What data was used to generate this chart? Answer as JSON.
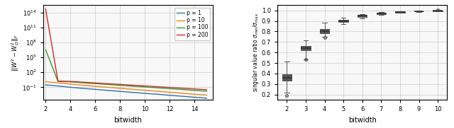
{
  "left": {
    "xlabel": "bitwidth",
    "xvals": [
      2,
      3,
      4,
      5,
      6,
      7,
      8,
      9,
      10,
      11,
      12,
      13,
      14,
      15
    ],
    "lines": {
      "p = 1": [
        0.3,
        0.18,
        0.1,
        0.06,
        0.038,
        0.024,
        0.015,
        0.0095,
        0.006,
        0.004,
        0.0025,
        0.0016,
        0.001,
        0.00065
      ],
      "p = 10": [
        1.3,
        0.75,
        0.43,
        0.26,
        0.16,
        0.098,
        0.062,
        0.039,
        0.025,
        0.016,
        0.01,
        0.0065,
        0.004,
        0.0026
      ],
      "p = 100": [
        3500000.0,
        1.5,
        1.2,
        0.8,
        0.54,
        0.37,
        0.25,
        0.17,
        0.115,
        0.078,
        0.053,
        0.036,
        0.024,
        0.016
      ],
      "p = 200": [
        500000000000000.0,
        1.8,
        1.5,
        1.05,
        0.74,
        0.52,
        0.37,
        0.26,
        0.185,
        0.13,
        0.092,
        0.065,
        0.046,
        0.032
      ]
    },
    "colors": {
      "p = 1": "#1f77b4",
      "p = 10": "#ff7f0e",
      "p = 100": "#2ca02c",
      "p = 200": "#d62728"
    },
    "xticks": [
      2,
      4,
      6,
      8,
      10,
      12,
      14
    ],
    "xlim": [
      1.8,
      15.5
    ],
    "ylim": [
      0.0003,
      3000000000000000.0
    ]
  },
  "right": {
    "xlabel": "bitwidth",
    "xticks": [
      2,
      3,
      4,
      5,
      6,
      7,
      8,
      9,
      10
    ],
    "ylim": [
      0.15,
      1.05
    ],
    "yticks": [
      0.2,
      0.3,
      0.4,
      0.5,
      0.6,
      0.7,
      0.8,
      0.9,
      1.0
    ],
    "box_data": {
      "2": {
        "q1": 0.335,
        "median": 0.362,
        "q3": 0.395,
        "whisker_low": 0.218,
        "whisker_high": 0.515,
        "outliers_low": [
          0.193
        ],
        "outliers_high": []
      },
      "3": {
        "q1": 0.622,
        "median": 0.645,
        "q3": 0.662,
        "whisker_low": 0.535,
        "whisker_high": 0.718,
        "outliers_low": [
          0.535
        ],
        "outliers_high": []
      },
      "4": {
        "q1": 0.783,
        "median": 0.805,
        "q3": 0.823,
        "whisker_low": 0.748,
        "whisker_high": 0.885,
        "outliers_low": [
          0.745
        ],
        "outliers_high": []
      },
      "5": {
        "q1": 0.888,
        "median": 0.9,
        "q3": 0.91,
        "whisker_low": 0.868,
        "whisker_high": 0.928,
        "outliers_low": [],
        "outliers_high": []
      },
      "6": {
        "q1": 0.94,
        "median": 0.95,
        "q3": 0.958,
        "whisker_low": 0.925,
        "whisker_high": 0.965,
        "outliers_low": [],
        "outliers_high": []
      },
      "7": {
        "q1": 0.965,
        "median": 0.97,
        "q3": 0.975,
        "whisker_low": 0.958,
        "whisker_high": 0.982,
        "outliers_low": [],
        "outliers_high": []
      },
      "8": {
        "q1": 0.981,
        "median": 0.985,
        "q3": 0.988,
        "whisker_low": 0.976,
        "whisker_high": 0.992,
        "outliers_low": [],
        "outliers_high": []
      },
      "9": {
        "q1": 0.989,
        "median": 0.991,
        "q3": 0.993,
        "whisker_low": 0.986,
        "whisker_high": 0.996,
        "outliers_low": [],
        "outliers_high": []
      },
      "10": {
        "q1": 0.993,
        "median": 0.995,
        "q3": 0.997,
        "whisker_low": 0.99,
        "whisker_high": 1.0,
        "outliers_low": [],
        "outliers_high": [
          1.002
        ]
      }
    },
    "box_color": "#ff7f0e",
    "box_width": 0.5
  },
  "bg_color": "#f8f8f8",
  "grid_color": "#cccccc"
}
